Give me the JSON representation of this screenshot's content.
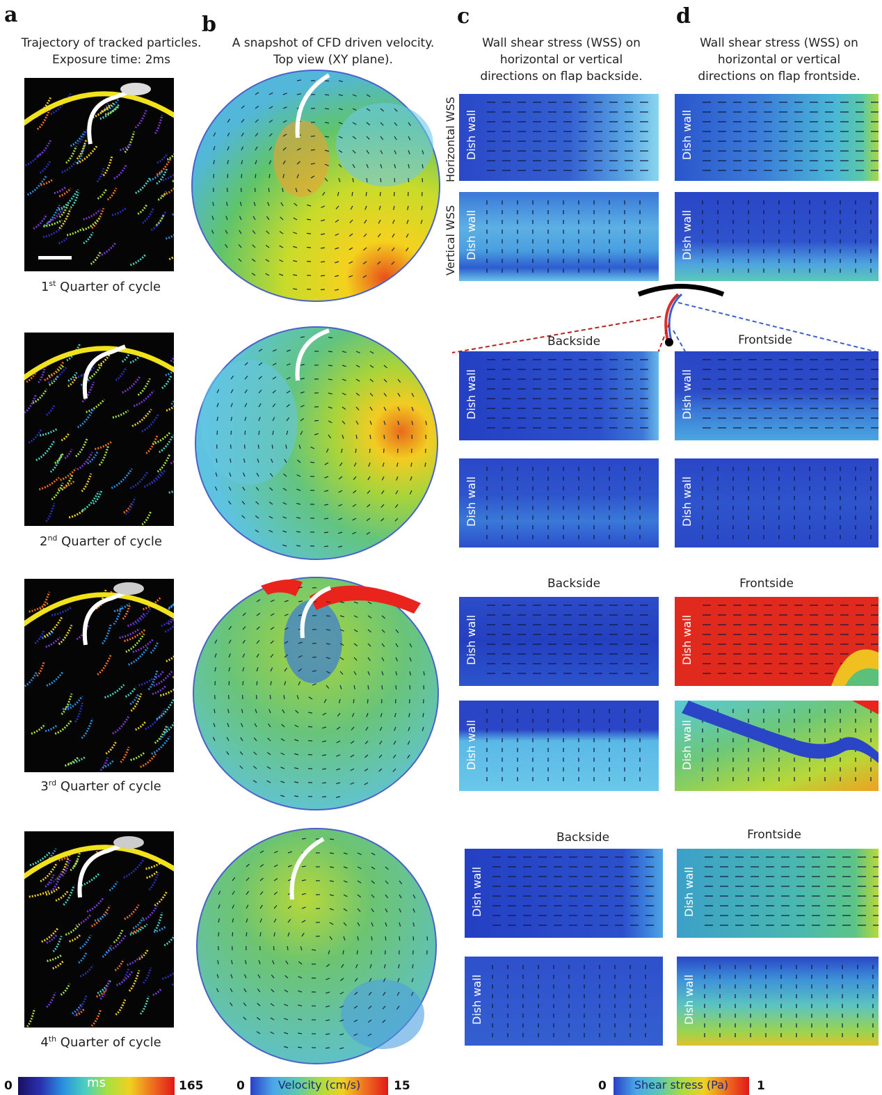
{
  "panel_letters": {
    "a": "a",
    "b": "b",
    "c": "c",
    "d": "d"
  },
  "headers": {
    "a": [
      "Trajectory of tracked particles.",
      "Exposure time: 2ms"
    ],
    "b": [
      "A snapshot of CFD  driven velocity.",
      "Top view (XY plane)."
    ],
    "c": [
      "Wall shear stress (WSS) on",
      "horizontal or vertical",
      "directions on flap backside."
    ],
    "d": [
      "Wall shear stress (WSS)  on",
      "horizontal or vertical",
      "directions on flap frontside."
    ]
  },
  "quarters": [
    {
      "num": "1",
      "sup": "st",
      "text": " Quarter of cycle"
    },
    {
      "num": "2",
      "sup": "nd",
      "text": "  Quarter of cycle"
    },
    {
      "num": "3",
      "sup": "rd",
      "text": " Quarter of cycle"
    },
    {
      "num": "4",
      "sup": "th",
      "text": " Quarter of cycle"
    }
  ],
  "row_labels": {
    "horizontal": "Horizontal WSS",
    "vertical": "Vertical WSS"
  },
  "dish_wall": "Dish wall",
  "sides": {
    "backside": "Backside",
    "frontside": "Frontside"
  },
  "colorbars": {
    "time": {
      "min": "0",
      "label": "ms",
      "max": "165"
    },
    "velocity": {
      "min": "0",
      "label": "Velocity (cm/s)",
      "max": "15"
    },
    "shear": {
      "min": "0",
      "label": "Shear stress (Pa)",
      "max": "1"
    }
  },
  "colors": {
    "flap_arc": "#f2e21b",
    "flap": "#ffffff",
    "dish_edge": "#4a62c8"
  }
}
